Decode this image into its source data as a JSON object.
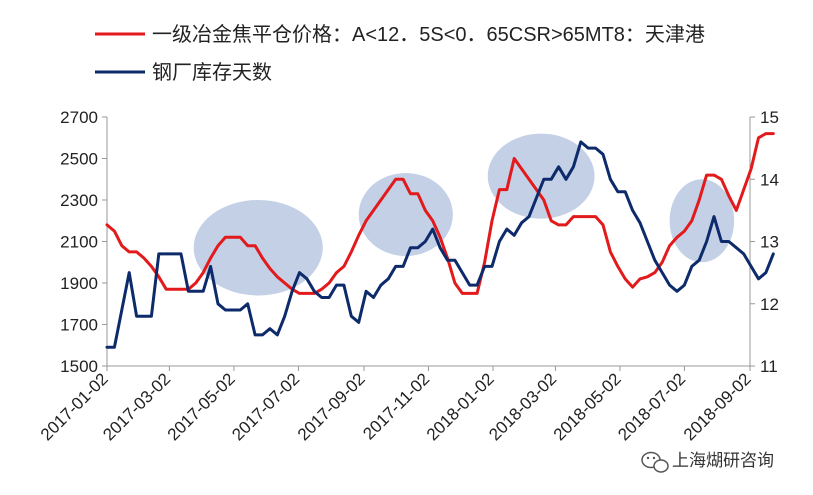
{
  "chart_data": {
    "type": "line",
    "legend_position": "top-left",
    "grid": false,
    "colors": {
      "coke_price": "#e31a1c",
      "steel_days": "#0d2a6b",
      "highlight": "#b8c8e2"
    },
    "x_ticks": [
      "2017-01-02",
      "2017-03-02",
      "2017-05-02",
      "2017-07-02",
      "2017-09-02",
      "2017-11-02",
      "2018-01-02",
      "2018-03-02",
      "2018-05-02",
      "2018-07-02",
      "2018-09-02"
    ],
    "y_left": {
      "ylim": [
        1500,
        2700
      ],
      "ticks": [
        "1500",
        "1700",
        "1900",
        "2100",
        "2300",
        "2500",
        "2700"
      ]
    },
    "y_right": {
      "ylim": [
        11,
        15
      ],
      "ticks": [
        "11",
        "12",
        "13",
        "14",
        "15"
      ]
    },
    "series": [
      {
        "name": "一级冶金焦平仓价格：A<12．5S<0．65CSR>65MT8：天津港",
        "axis": "left",
        "points": [
          [
            "2017-01-02",
            2180
          ],
          [
            "2017-01-09",
            2150
          ],
          [
            "2017-01-16",
            2080
          ],
          [
            "2017-01-23",
            2050
          ],
          [
            "2017-01-30",
            2050
          ],
          [
            "2017-02-06",
            2020
          ],
          [
            "2017-02-13",
            1980
          ],
          [
            "2017-02-20",
            1930
          ],
          [
            "2017-02-27",
            1870
          ],
          [
            "2017-03-06",
            1870
          ],
          [
            "2017-03-13",
            1870
          ],
          [
            "2017-03-20",
            1870
          ],
          [
            "2017-03-27",
            1900
          ],
          [
            "2017-04-03",
            1950
          ],
          [
            "2017-04-10",
            2020
          ],
          [
            "2017-04-17",
            2080
          ],
          [
            "2017-04-24",
            2120
          ],
          [
            "2017-05-01",
            2120
          ],
          [
            "2017-05-08",
            2120
          ],
          [
            "2017-05-15",
            2080
          ],
          [
            "2017-05-22",
            2080
          ],
          [
            "2017-05-29",
            2020
          ],
          [
            "2017-06-05",
            1970
          ],
          [
            "2017-06-12",
            1930
          ],
          [
            "2017-06-19",
            1900
          ],
          [
            "2017-06-26",
            1870
          ],
          [
            "2017-07-03",
            1850
          ],
          [
            "2017-07-10",
            1850
          ],
          [
            "2017-07-17",
            1850
          ],
          [
            "2017-07-24",
            1870
          ],
          [
            "2017-07-31",
            1900
          ],
          [
            "2017-08-07",
            1950
          ],
          [
            "2017-08-14",
            1980
          ],
          [
            "2017-08-21",
            2050
          ],
          [
            "2017-08-28",
            2130
          ],
          [
            "2017-09-04",
            2200
          ],
          [
            "2017-09-11",
            2250
          ],
          [
            "2017-09-18",
            2300
          ],
          [
            "2017-09-25",
            2350
          ],
          [
            "2017-10-02",
            2400
          ],
          [
            "2017-10-09",
            2400
          ],
          [
            "2017-10-16",
            2330
          ],
          [
            "2017-10-23",
            2330
          ],
          [
            "2017-10-30",
            2250
          ],
          [
            "2017-11-06",
            2200
          ],
          [
            "2017-11-13",
            2120
          ],
          [
            "2017-11-20",
            2020
          ],
          [
            "2017-11-27",
            1900
          ],
          [
            "2017-12-04",
            1850
          ],
          [
            "2017-12-11",
            1850
          ],
          [
            "2017-12-18",
            1850
          ],
          [
            "2017-12-25",
            2000
          ],
          [
            "2018-01-01",
            2200
          ],
          [
            "2018-01-08",
            2350
          ],
          [
            "2018-01-15",
            2350
          ],
          [
            "2018-01-22",
            2500
          ],
          [
            "2018-01-29",
            2450
          ],
          [
            "2018-02-05",
            2400
          ],
          [
            "2018-02-12",
            2350
          ],
          [
            "2018-02-19",
            2300
          ],
          [
            "2018-02-26",
            2200
          ],
          [
            "2018-03-05",
            2180
          ],
          [
            "2018-03-12",
            2180
          ],
          [
            "2018-03-19",
            2220
          ],
          [
            "2018-03-26",
            2220
          ],
          [
            "2018-04-02",
            2220
          ],
          [
            "2018-04-09",
            2220
          ],
          [
            "2018-04-16",
            2180
          ],
          [
            "2018-04-23",
            2050
          ],
          [
            "2018-04-30",
            1980
          ],
          [
            "2018-05-07",
            1920
          ],
          [
            "2018-05-14",
            1880
          ],
          [
            "2018-05-21",
            1920
          ],
          [
            "2018-05-28",
            1930
          ],
          [
            "2018-06-04",
            1950
          ],
          [
            "2018-06-11",
            2000
          ],
          [
            "2018-06-18",
            2080
          ],
          [
            "2018-06-25",
            2120
          ],
          [
            "2018-07-02",
            2150
          ],
          [
            "2018-07-09",
            2200
          ],
          [
            "2018-07-16",
            2300
          ],
          [
            "2018-07-23",
            2420
          ],
          [
            "2018-07-30",
            2420
          ],
          [
            "2018-08-06",
            2400
          ],
          [
            "2018-08-13",
            2320
          ],
          [
            "2018-08-20",
            2250
          ],
          [
            "2018-08-27",
            2350
          ],
          [
            "2018-09-03",
            2450
          ],
          [
            "2018-09-10",
            2600
          ],
          [
            "2018-09-17",
            2620
          ],
          [
            "2018-09-24",
            2620
          ]
        ]
      },
      {
        "name": "钢厂库存天数",
        "axis": "right",
        "points": [
          [
            "2017-01-02",
            11.3
          ],
          [
            "2017-01-09",
            11.3
          ],
          [
            "2017-01-16",
            11.9
          ],
          [
            "2017-01-23",
            12.5
          ],
          [
            "2017-01-30",
            11.8
          ],
          [
            "2017-02-06",
            11.8
          ],
          [
            "2017-02-13",
            11.8
          ],
          [
            "2017-02-20",
            12.8
          ],
          [
            "2017-02-27",
            12.8
          ],
          [
            "2017-03-06",
            12.8
          ],
          [
            "2017-03-13",
            12.8
          ],
          [
            "2017-03-20",
            12.2
          ],
          [
            "2017-03-27",
            12.2
          ],
          [
            "2017-04-03",
            12.2
          ],
          [
            "2017-04-10",
            12.6
          ],
          [
            "2017-04-17",
            12.0
          ],
          [
            "2017-04-24",
            11.9
          ],
          [
            "2017-05-01",
            11.9
          ],
          [
            "2017-05-08",
            11.9
          ],
          [
            "2017-05-15",
            12.0
          ],
          [
            "2017-05-22",
            11.5
          ],
          [
            "2017-05-29",
            11.5
          ],
          [
            "2017-06-05",
            11.6
          ],
          [
            "2017-06-12",
            11.5
          ],
          [
            "2017-06-19",
            11.8
          ],
          [
            "2017-06-26",
            12.2
          ],
          [
            "2017-07-03",
            12.5
          ],
          [
            "2017-07-10",
            12.4
          ],
          [
            "2017-07-17",
            12.2
          ],
          [
            "2017-07-24",
            12.1
          ],
          [
            "2017-07-31",
            12.1
          ],
          [
            "2017-08-07",
            12.3
          ],
          [
            "2017-08-14",
            12.3
          ],
          [
            "2017-08-21",
            11.8
          ],
          [
            "2017-08-28",
            11.7
          ],
          [
            "2017-09-04",
            12.2
          ],
          [
            "2017-09-11",
            12.1
          ],
          [
            "2017-09-18",
            12.3
          ],
          [
            "2017-09-25",
            12.4
          ],
          [
            "2017-10-02",
            12.6
          ],
          [
            "2017-10-09",
            12.6
          ],
          [
            "2017-10-16",
            12.9
          ],
          [
            "2017-10-23",
            12.9
          ],
          [
            "2017-10-30",
            13.0
          ],
          [
            "2017-11-06",
            13.2
          ],
          [
            "2017-11-13",
            12.9
          ],
          [
            "2017-11-20",
            12.7
          ],
          [
            "2017-11-27",
            12.7
          ],
          [
            "2017-12-04",
            12.5
          ],
          [
            "2017-12-11",
            12.3
          ],
          [
            "2017-12-18",
            12.3
          ],
          [
            "2017-12-25",
            12.6
          ],
          [
            "2018-01-01",
            12.6
          ],
          [
            "2018-01-08",
            13.0
          ],
          [
            "2018-01-15",
            13.2
          ],
          [
            "2018-01-22",
            13.1
          ],
          [
            "2018-01-29",
            13.3
          ],
          [
            "2018-02-05",
            13.4
          ],
          [
            "2018-02-12",
            13.7
          ],
          [
            "2018-02-19",
            14.0
          ],
          [
            "2018-02-26",
            14.0
          ],
          [
            "2018-03-05",
            14.2
          ],
          [
            "2018-03-12",
            14.0
          ],
          [
            "2018-03-19",
            14.2
          ],
          [
            "2018-03-26",
            14.6
          ],
          [
            "2018-04-02",
            14.5
          ],
          [
            "2018-04-09",
            14.5
          ],
          [
            "2018-04-16",
            14.4
          ],
          [
            "2018-04-23",
            14.0
          ],
          [
            "2018-04-30",
            13.8
          ],
          [
            "2018-05-07",
            13.8
          ],
          [
            "2018-05-14",
            13.5
          ],
          [
            "2018-05-21",
            13.3
          ],
          [
            "2018-05-28",
            13.0
          ],
          [
            "2018-06-04",
            12.7
          ],
          [
            "2018-06-11",
            12.5
          ],
          [
            "2018-06-18",
            12.3
          ],
          [
            "2018-06-25",
            12.2
          ],
          [
            "2018-07-02",
            12.3
          ],
          [
            "2018-07-09",
            12.6
          ],
          [
            "2018-07-16",
            12.7
          ],
          [
            "2018-07-23",
            13.0
          ],
          [
            "2018-07-30",
            13.4
          ],
          [
            "2018-08-06",
            13.0
          ],
          [
            "2018-08-13",
            13.0
          ],
          [
            "2018-08-20",
            12.9
          ],
          [
            "2018-08-27",
            12.8
          ],
          [
            "2018-09-03",
            12.6
          ],
          [
            "2018-09-10",
            12.4
          ],
          [
            "2018-09-17",
            12.5
          ],
          [
            "2018-09-24",
            12.8
          ]
        ]
      }
    ],
    "highlights": [
      {
        "start": "2017-03-25",
        "end": "2017-07-25",
        "y_low": 1840,
        "y_high": 2300
      },
      {
        "start": "2017-08-28",
        "end": "2017-11-25",
        "y_low": 2030,
        "y_high": 2430
      },
      {
        "start": "2017-12-28",
        "end": "2018-04-08",
        "y_low": 2210,
        "y_high": 2620
      },
      {
        "start": "2018-06-18",
        "end": "2018-08-18",
        "y_low": 2000,
        "y_high": 2400
      }
    ]
  },
  "watermark": {
    "text": "上海煳研咨询",
    "icon": "wechat-icon"
  }
}
